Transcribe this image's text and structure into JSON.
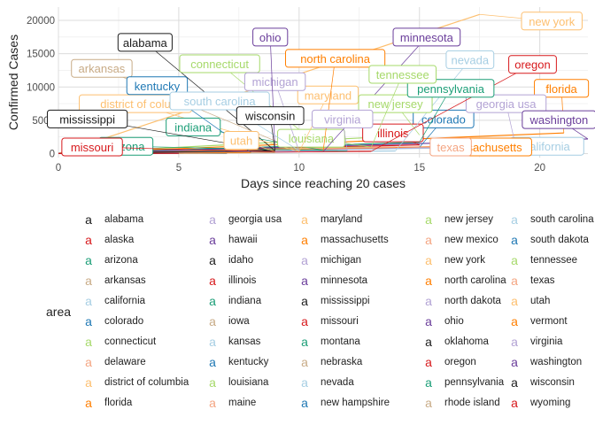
{
  "chart_data": {
    "type": "line",
    "title": "",
    "xlabel": "Days since reaching 20 cases",
    "ylabel": "Confirmed Cases",
    "xlim": [
      0,
      22
    ],
    "ylim": [
      -600,
      22000
    ],
    "x_ticks": [
      0,
      5,
      10,
      15,
      20
    ],
    "y_ticks": [
      0,
      5000,
      10000,
      15000,
      20000
    ],
    "x_tick_labels": [
      "0",
      "5",
      "10",
      "15",
      "20"
    ],
    "y_tick_labels": [
      "0",
      "5000",
      "10000",
      "15000",
      "20000"
    ],
    "grid": true,
    "legend": {
      "title": "area",
      "position": "bottom",
      "key_glyph": "a"
    },
    "series": [
      {
        "name": "alabama",
        "color": "#1b1b1b",
        "x": [
          0,
          9
        ],
        "y": [
          20,
          420
        ],
        "label": "alabama",
        "label_pos": [
          3.6,
          16700
        ]
      },
      {
        "name": "alaska",
        "color": "#d7191c",
        "x": [
          0,
          7
        ],
        "y": [
          20,
          90
        ],
        "label": "",
        "label_pos": null
      },
      {
        "name": "arizona",
        "color": "#1b9e77",
        "x": [
          0,
          12
        ],
        "y": [
          20,
          400
        ],
        "label": "arizona",
        "label_pos": [
          2.8,
          1100
        ]
      },
      {
        "name": "arkansas",
        "color": "#c8ab86",
        "x": [
          0,
          10
        ],
        "y": [
          20,
          400
        ],
        "label": "arkansas",
        "label_pos": [
          1.8,
          12800
        ]
      },
      {
        "name": "california",
        "color": "#a6cee3",
        "x": [
          0,
          21
        ],
        "y": [
          20,
          1100
        ],
        "label": "california",
        "label_pos": [
          20.3,
          1100
        ]
      },
      {
        "name": "colorado",
        "color": "#1f78b4",
        "x": [
          0,
          15
        ],
        "y": [
          20,
          950
        ],
        "label": "colorado",
        "label_pos": [
          16.0,
          5200
        ]
      },
      {
        "name": "connecticut",
        "color": "#a6d96a",
        "x": [
          0,
          11
        ],
        "y": [
          20,
          600
        ],
        "label": "connecticut",
        "label_pos": [
          6.7,
          13500
        ]
      },
      {
        "name": "delaware",
        "color": "#f4a582",
        "x": [
          0,
          8
        ],
        "y": [
          20,
          150
        ],
        "label": "",
        "label_pos": null
      },
      {
        "name": "district of columbia",
        "color": "#fdbf6f",
        "x": [
          0,
          10
        ],
        "y": [
          20,
          300
        ],
        "label": "district of colu",
        "label_pos": [
          3.2,
          7500
        ]
      },
      {
        "name": "florida",
        "color": "#ff7f00",
        "x": [
          0,
          21
        ],
        "y": [
          20,
          3100
        ],
        "label": "florida",
        "label_pos": [
          20.9,
          9800
        ]
      },
      {
        "name": "georgia usa",
        "color": "#b2a2d4",
        "x": [
          0,
          19
        ],
        "y": [
          20,
          1100
        ],
        "label": "georgia usa",
        "label_pos": [
          18.6,
          7500
        ]
      },
      {
        "name": "hawaii",
        "color": "#6a3d9a",
        "x": [
          0,
          6
        ],
        "y": [
          20,
          80
        ],
        "label": "",
        "label_pos": null
      },
      {
        "name": "idaho",
        "color": "#1b1b1b",
        "x": [
          0,
          5
        ],
        "y": [
          20,
          60
        ],
        "label": "",
        "label_pos": null
      },
      {
        "name": "illinois",
        "color": "#d7191c",
        "x": [
          0,
          15
        ],
        "y": [
          20,
          1300
        ],
        "label": "illinois",
        "label_pos": [
          13.9,
          3100
        ]
      },
      {
        "name": "indiana",
        "color": "#1b9e77",
        "x": [
          0,
          11
        ],
        "y": [
          20,
          500
        ],
        "label": "indiana",
        "label_pos": [
          5.6,
          4000
        ]
      },
      {
        "name": "iowa",
        "color": "#c8ab86",
        "x": [
          0,
          7
        ],
        "y": [
          20,
          120
        ],
        "label": "",
        "label_pos": null
      },
      {
        "name": "kansas",
        "color": "#a6cee3",
        "x": [
          0,
          7
        ],
        "y": [
          20,
          110
        ],
        "label": "",
        "label_pos": null
      },
      {
        "name": "kentucky",
        "color": "#1f78b4",
        "x": [
          0,
          8
        ],
        "y": [
          20,
          200
        ],
        "label": "kentucky",
        "label_pos": [
          4.1,
          10200
        ]
      },
      {
        "name": "louisiana",
        "color": "#a6d96a",
        "x": [
          0,
          13
        ],
        "y": [
          20,
          1000
        ],
        "label": "louisiana",
        "label_pos": [
          10.5,
          2300
        ]
      },
      {
        "name": "maine",
        "color": "#f4a582",
        "x": [
          0,
          7
        ],
        "y": [
          20,
          90
        ],
        "label": "",
        "label_pos": null
      },
      {
        "name": "maryland",
        "color": "#fdbf6f",
        "x": [
          0,
          10
        ],
        "y": [
          20,
          300
        ],
        "label": "maryland",
        "label_pos": [
          11.2,
          8800
        ]
      },
      {
        "name": "massachusetts",
        "color": "#ff7f00",
        "x": [
          0,
          18
        ],
        "y": [
          20,
          1200
        ],
        "label": "ssachusetts",
        "label_pos": [
          18.0,
          1000
        ]
      },
      {
        "name": "michigan",
        "color": "#b2a2d4",
        "x": [
          0,
          10
        ],
        "y": [
          20,
          350
        ],
        "label": "michigan",
        "label_pos": [
          9.0,
          10800
        ]
      },
      {
        "name": "minnesota",
        "color": "#6a3d9a",
        "x": [
          0,
          11
        ],
        "y": [
          20,
          300
        ],
        "label": "minnesota",
        "label_pos": [
          15.3,
          17500
        ]
      },
      {
        "name": "mississippi",
        "color": "#1b1b1b",
        "x": [
          0,
          9
        ],
        "y": [
          20,
          300
        ],
        "label": "mississippi",
        "label_pos": [
          1.2,
          5200
        ]
      },
      {
        "name": "missouri",
        "color": "#d7191c",
        "x": [
          0,
          9
        ],
        "y": [
          20,
          250
        ],
        "label": "missouri",
        "label_pos": [
          1.4,
          1000
        ]
      },
      {
        "name": "montana",
        "color": "#1b9e77",
        "x": [
          0,
          5
        ],
        "y": [
          20,
          50
        ],
        "label": "",
        "label_pos": null
      },
      {
        "name": "nebraska",
        "color": "#c8ab86",
        "x": [
          0,
          6
        ],
        "y": [
          20,
          70
        ],
        "label": "",
        "label_pos": null
      },
      {
        "name": "nevada",
        "color": "#a6cee3",
        "x": [
          0,
          14
        ],
        "y": [
          20,
          400
        ],
        "label": "nevada",
        "label_pos": [
          17.1,
          14100
        ]
      },
      {
        "name": "new hampshire",
        "color": "#1f78b4",
        "x": [
          0,
          7
        ],
        "y": [
          20,
          120
        ],
        "label": "",
        "label_pos": null
      },
      {
        "name": "new jersey",
        "color": "#a6d96a",
        "x": [
          0,
          15
        ],
        "y": [
          20,
          2800
        ],
        "label": "new jersey",
        "label_pos": [
          14.0,
          7500
        ]
      },
      {
        "name": "new mexico",
        "color": "#f4a582",
        "x": [
          0,
          6
        ],
        "y": [
          20,
          80
        ],
        "label": "",
        "label_pos": null
      },
      {
        "name": "new york",
        "color": "#fdbf6f",
        "x": [
          0,
          17.5
        ],
        "y": [
          20,
          20900
        ],
        "label": "new york",
        "label_pos": [
          20.5,
          19900
        ]
      },
      {
        "name": "north carolina",
        "color": "#ff7f00",
        "x": [
          0,
          11
        ],
        "y": [
          20,
          400
        ],
        "label": "north carolina",
        "label_pos": [
          11.5,
          14300
        ]
      },
      {
        "name": "north dakota",
        "color": "#b2a2d4",
        "x": [
          0,
          5
        ],
        "y": [
          20,
          40
        ],
        "label": "",
        "label_pos": null
      },
      {
        "name": "ohio",
        "color": "#6a3d9a",
        "x": [
          0,
          9
        ],
        "y": [
          20,
          450
        ],
        "label": "ohio",
        "label_pos": [
          8.8,
          17500
        ]
      },
      {
        "name": "oklahoma",
        "color": "#1b1b1b",
        "x": [
          0,
          7
        ],
        "y": [
          20,
          100
        ],
        "label": "",
        "label_pos": null
      },
      {
        "name": "oregon",
        "color": "#d7191c",
        "x": [
          0,
          13
        ],
        "y": [
          20,
          350
        ],
        "label": "oregon",
        "label_pos": [
          19.7,
          13400
        ]
      },
      {
        "name": "pennsylvania",
        "color": "#1b9e77",
        "x": [
          0,
          15
        ],
        "y": [
          20,
          1700
        ],
        "label": "pennsylvania",
        "label_pos": [
          16.3,
          9800
        ]
      },
      {
        "name": "rhode island",
        "color": "#c8ab86",
        "x": [
          0,
          9
        ],
        "y": [
          20,
          150
        ],
        "label": "",
        "label_pos": null
      },
      {
        "name": "south carolina",
        "color": "#a6cee3",
        "x": [
          0,
          10
        ],
        "y": [
          20,
          450
        ],
        "label": "south carolina",
        "label_pos": [
          6.7,
          7900
        ]
      },
      {
        "name": "south dakota",
        "color": "#1f78b4",
        "x": [
          0,
          5
        ],
        "y": [
          20,
          40
        ],
        "label": "",
        "label_pos": null
      },
      {
        "name": "tennessee",
        "color": "#a6d96a",
        "x": [
          0,
          13
        ],
        "y": [
          20,
          1000
        ],
        "label": "tennessee",
        "label_pos": [
          14.3,
          11900
        ]
      },
      {
        "name": "texas",
        "color": "#f4a582",
        "x": [
          0,
          14
        ],
        "y": [
          20,
          1000
        ],
        "label": "texas",
        "label_pos": [
          16.3,
          1000
        ]
      },
      {
        "name": "utah",
        "color": "#fdbf6f",
        "x": [
          0,
          9
        ],
        "y": [
          20,
          300
        ],
        "label": "utah",
        "label_pos": [
          7.6,
          2000
        ]
      },
      {
        "name": "vermont",
        "color": "#ff7f00",
        "x": [
          0,
          8
        ],
        "y": [
          20,
          160
        ],
        "label": "",
        "label_pos": null
      },
      {
        "name": "virginia",
        "color": "#b2a2d4",
        "x": [
          0,
          12
        ],
        "y": [
          20,
          450
        ],
        "label": "virginia",
        "label_pos": [
          11.8,
          5200
        ]
      },
      {
        "name": "washington",
        "color": "#6a3d9a",
        "x": [
          0,
          22
        ],
        "y": [
          20,
          2200
        ],
        "label": "washington",
        "label_pos": [
          20.8,
          5100
        ]
      },
      {
        "name": "wisconsin",
        "color": "#1b1b1b",
        "x": [
          0,
          9
        ],
        "y": [
          20,
          450
        ],
        "label": "wisconsin",
        "label_pos": [
          8.8,
          5700
        ]
      },
      {
        "name": "wyoming",
        "color": "#d7191c",
        "x": [
          0,
          5
        ],
        "y": [
          20,
          40
        ],
        "label": "",
        "label_pos": null
      }
    ]
  }
}
